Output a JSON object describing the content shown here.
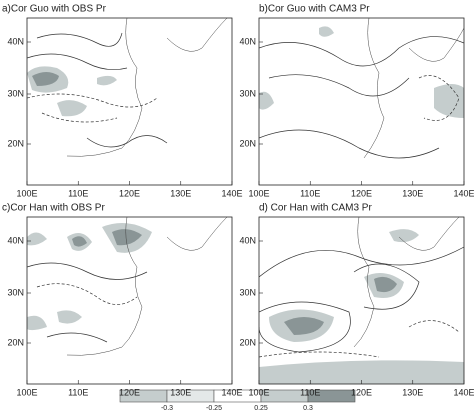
{
  "panels": [
    {
      "title": "a)Cor Guo with OBS Pr",
      "x_labels": [
        "100E",
        "110E",
        "120E",
        "130E",
        "140E"
      ],
      "y_labels": [
        "40N",
        "30N",
        "20N"
      ]
    },
    {
      "title": "b)Cor Guo with CAM3 Pr",
      "x_labels": [
        "100E",
        "110E",
        "120E",
        "130E",
        "140E"
      ],
      "y_labels": [
        "40N",
        "30N",
        "20N"
      ]
    },
    {
      "title": "c)Cor Han with OBS Pr",
      "x_labels": [
        "100E",
        "110E",
        "120E",
        "130E",
        "140E"
      ],
      "y_labels": [
        "40N",
        "30N",
        "20N"
      ]
    },
    {
      "title": "d) Cor Han with CAM3 Pr",
      "x_labels": [
        "100E",
        "110E",
        "120E",
        "130E",
        "140E"
      ],
      "y_labels": [
        "40N",
        "30N",
        "20N"
      ]
    }
  ],
  "colorbar": {
    "labels": [
      "-0.3",
      "-0.25",
      "0.25",
      "0.3"
    ]
  }
}
